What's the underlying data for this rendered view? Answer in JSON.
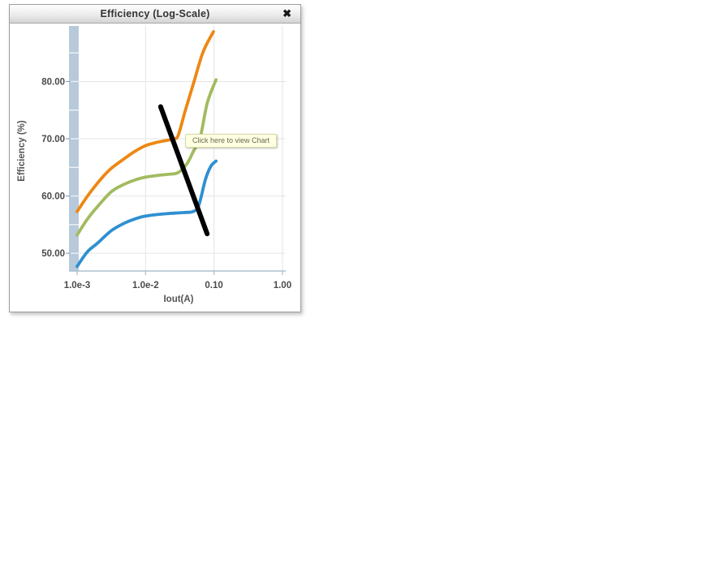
{
  "window": {
    "title": "Efficiency (Log-Scale)",
    "close_label": "✖"
  },
  "tooltip": {
    "text": "Click here to view Chart",
    "bg": "#ffffe1",
    "border": "#d9d9a8"
  },
  "colors": {
    "axis_band": "#b7c9da",
    "band_separator": "#ffffff",
    "grid": "#e4e4e4",
    "axis_line": "#a9c0d4",
    "y_tick_mark": "#93a5b5",
    "tick_text": "#4a4a4a"
  },
  "chart_data": {
    "type": "line",
    "title": "Efficiency (Log-Scale)",
    "xlabel": "Iout(A)",
    "ylabel": "Efficiency (%)",
    "x_scale": "log",
    "grid": true,
    "legend_position": "none",
    "xlim": [
      0.001,
      1.0
    ],
    "ylim": [
      46.9,
      89.7
    ],
    "x_ticks": [
      {
        "value": 0.001,
        "label": "1.0e-3"
      },
      {
        "value": 0.01,
        "label": "1.0e-2"
      },
      {
        "value": 0.1,
        "label": "0.10"
      },
      {
        "value": 1.0,
        "label": "1.00"
      }
    ],
    "y_ticks": [
      {
        "value": 50,
        "label": "50.00"
      },
      {
        "value": 60,
        "label": "60.00"
      },
      {
        "value": 70,
        "label": "70.00"
      },
      {
        "value": 80,
        "label": "80.00"
      }
    ],
    "band_separator_values": [
      50,
      55,
      60,
      65,
      70,
      75,
      80,
      85
    ],
    "series": [
      {
        "name": "curve-orange",
        "color": "#ED8712",
        "points": [
          [
            0.001,
            57.3
          ],
          [
            0.0014,
            59.9
          ],
          [
            0.002,
            62.3
          ],
          [
            0.003,
            64.6
          ],
          [
            0.005,
            66.6
          ],
          [
            0.007,
            67.8
          ],
          [
            0.01,
            68.8
          ],
          [
            0.015,
            69.4
          ],
          [
            0.02,
            69.7
          ],
          [
            0.026,
            70.0
          ],
          [
            0.03,
            70.6
          ],
          [
            0.038,
            74.9
          ],
          [
            0.05,
            79.6
          ],
          [
            0.069,
            85.1
          ],
          [
            0.098,
            88.7
          ]
        ]
      },
      {
        "name": "curve-green",
        "color": "#A2BB5E",
        "points": [
          [
            0.001,
            53.2
          ],
          [
            0.0014,
            55.9
          ],
          [
            0.002,
            58.2
          ],
          [
            0.0032,
            60.8
          ],
          [
            0.005,
            62.1
          ],
          [
            0.007,
            62.8
          ],
          [
            0.01,
            63.3
          ],
          [
            0.015,
            63.6
          ],
          [
            0.022,
            63.8
          ],
          [
            0.03,
            64.1
          ],
          [
            0.04,
            65.6
          ],
          [
            0.05,
            67.8
          ],
          [
            0.063,
            70.3
          ],
          [
            0.08,
            76.3
          ],
          [
            0.107,
            80.3
          ]
        ]
      },
      {
        "name": "curve-blue",
        "color": "#2E90D1",
        "points": [
          [
            0.001,
            47.7
          ],
          [
            0.0014,
            50.2
          ],
          [
            0.002,
            51.8
          ],
          [
            0.0032,
            54.0
          ],
          [
            0.005,
            55.3
          ],
          [
            0.007,
            56.0
          ],
          [
            0.01,
            56.5
          ],
          [
            0.02,
            56.9
          ],
          [
            0.035,
            57.1
          ],
          [
            0.05,
            57.3
          ],
          [
            0.06,
            58.4
          ],
          [
            0.075,
            62.9
          ],
          [
            0.09,
            65.2
          ],
          [
            0.107,
            66.1
          ]
        ]
      }
    ],
    "annotation_line": {
      "color": "#000000",
      "width": 6,
      "from": [
        0.0166,
        75.6
      ],
      "to": [
        0.0794,
        53.4
      ]
    }
  }
}
